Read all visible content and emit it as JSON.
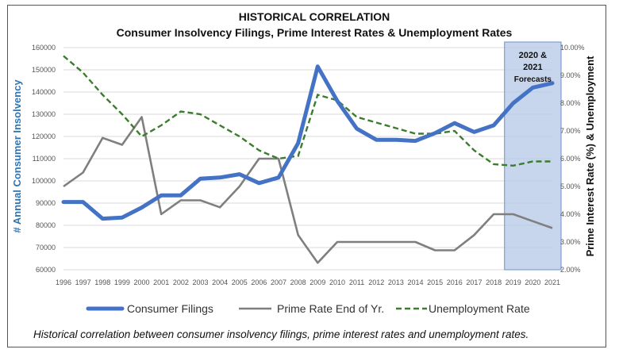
{
  "chart_data": {
    "type": "line",
    "title": "HISTORICAL CORRELATION",
    "subtitle": "Consumer Insolvency Filings, Prime Interest Rates & Unemployment Rates",
    "xlabel": "",
    "ylabel_left": "# Annual Consumer Insolvency",
    "ylabel_right": "Prime Interest Rate (%) & Unemployment",
    "x": [
      "1996",
      "1997",
      "1998",
      "1999",
      "2000",
      "2001",
      "2002",
      "2003",
      "2004",
      "2005",
      "2006",
      "2007",
      "2008",
      "2009",
      "2010",
      "2011",
      "2012",
      "2013",
      "2014",
      "2015",
      "2016",
      "2017",
      "2018",
      "2019",
      "2020",
      "2021"
    ],
    "ylim_left": [
      60000,
      160000
    ],
    "yticks_left": [
      "60000",
      "70000",
      "80000",
      "90000",
      "100000",
      "110000",
      "120000",
      "130000",
      "140000",
      "150000",
      "160000"
    ],
    "ylim_right": [
      2,
      10
    ],
    "yticks_right": [
      "2.00%",
      "3.00%",
      "4.00%",
      "5.00%",
      "6.00%",
      "7.00%",
      "8.00%",
      "9.00%",
      "10.00%"
    ],
    "forecast_label": [
      "2020 &",
      "2021",
      "Forecasts"
    ],
    "forecast_years": [
      "2019",
      "2021"
    ],
    "series": [
      {
        "name": "Consumer Filings",
        "axis": "left",
        "color": "#4472C4",
        "style": "solid-thick",
        "values": [
          90500,
          90500,
          83000,
          83500,
          88000,
          93500,
          93500,
          101000,
          101500,
          103000,
          99000,
          101500,
          117000,
          151500,
          136000,
          123500,
          118500,
          118500,
          118000,
          121500,
          126000,
          122000,
          125000,
          135000,
          142000,
          144000
        ]
      },
      {
        "name": "Prime Rate  End of Yr.",
        "axis": "right",
        "color": "#7F7F7F",
        "style": "solid",
        "values": [
          5.0,
          5.5,
          6.75,
          6.5,
          7.5,
          4.0,
          4.5,
          4.5,
          4.25,
          5.0,
          6.0,
          6.0,
          3.25,
          2.25,
          3.0,
          3.0,
          3.0,
          3.0,
          3.0,
          2.7,
          2.7,
          3.25,
          4.0,
          4.0,
          3.75,
          3.5
        ]
      },
      {
        "name": "Unemployment Rate",
        "axis": "right",
        "color": "#3A7D2C",
        "style": "dashed",
        "values": [
          9.7,
          9.1,
          8.3,
          7.6,
          6.8,
          7.2,
          7.7,
          7.6,
          7.2,
          6.8,
          6.3,
          6.0,
          6.1,
          8.3,
          8.1,
          7.5,
          7.3,
          7.1,
          6.9,
          6.9,
          7.0,
          6.3,
          5.8,
          5.75,
          5.9,
          5.9
        ]
      }
    ],
    "legend_position": "bottom",
    "grid": true
  },
  "caption": "Historical correlation between consumer insolvency filings, prime interest rates and unemployment rates."
}
